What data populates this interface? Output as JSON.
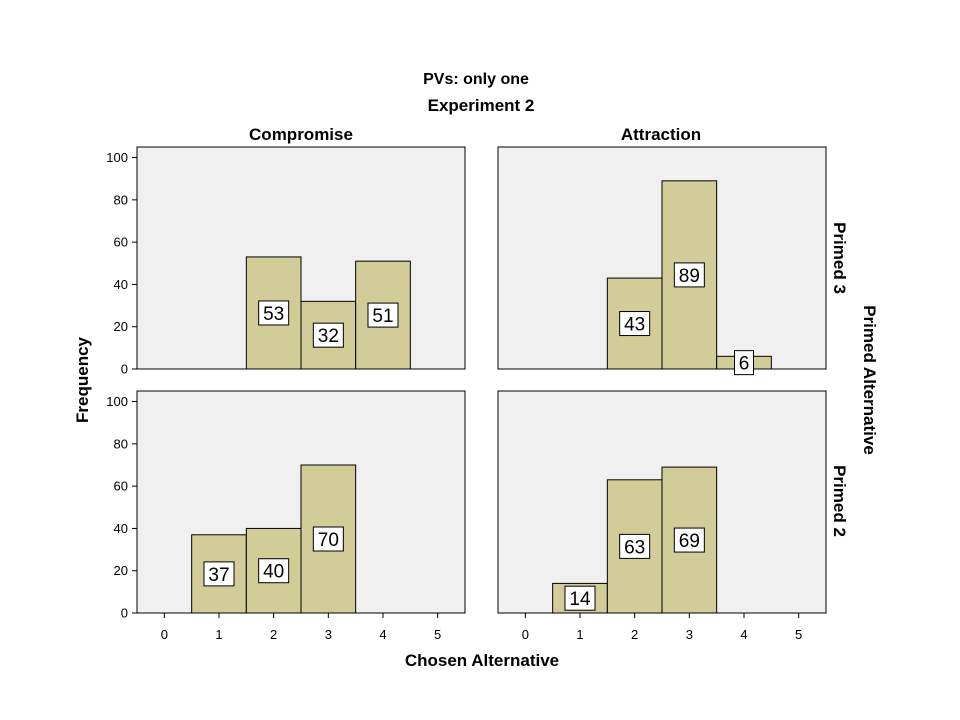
{
  "chart_data": {
    "type": "bar",
    "subtitle": "PVs: only one",
    "title": "Experiment 2",
    "xlabel": "Chosen Alternative",
    "ylabel": "Frequency",
    "row_group_label": "Primed Alternative",
    "column_labels": [
      "Compromise",
      "Attraction"
    ],
    "row_labels": [
      "Primed 3",
      "Primed 2"
    ],
    "x_ticks": [
      "0",
      "1",
      "2",
      "3",
      "4",
      "5"
    ],
    "y_ticks": [
      "0",
      "20",
      "40",
      "60",
      "80",
      "100"
    ],
    "xlim": [
      -0.5,
      5.5
    ],
    "ylim": [
      0,
      105
    ],
    "grid": false,
    "bar_color": "#d1cc98",
    "panel_background": "#f0f0f0",
    "panels": [
      {
        "column": "Compromise",
        "row": "Primed 3",
        "bars": [
          {
            "x": 2,
            "value": 53,
            "label": "53"
          },
          {
            "x": 3,
            "value": 32,
            "label": "32"
          },
          {
            "x": 4,
            "value": 51,
            "label": "51"
          }
        ]
      },
      {
        "column": "Attraction",
        "row": "Primed 3",
        "bars": [
          {
            "x": 2,
            "value": 43,
            "label": "43"
          },
          {
            "x": 3,
            "value": 89,
            "label": "89"
          },
          {
            "x": 4,
            "value": 6,
            "label": "6"
          }
        ]
      },
      {
        "column": "Compromise",
        "row": "Primed 2",
        "bars": [
          {
            "x": 1,
            "value": 37,
            "label": "37"
          },
          {
            "x": 2,
            "value": 40,
            "label": "40"
          },
          {
            "x": 3,
            "value": 70,
            "label": "70"
          }
        ]
      },
      {
        "column": "Attraction",
        "row": "Primed 2",
        "bars": [
          {
            "x": 1,
            "value": 14,
            "label": "14"
          },
          {
            "x": 2,
            "value": 63,
            "label": "63"
          },
          {
            "x": 3,
            "value": 69,
            "label": "69"
          }
        ]
      }
    ]
  }
}
